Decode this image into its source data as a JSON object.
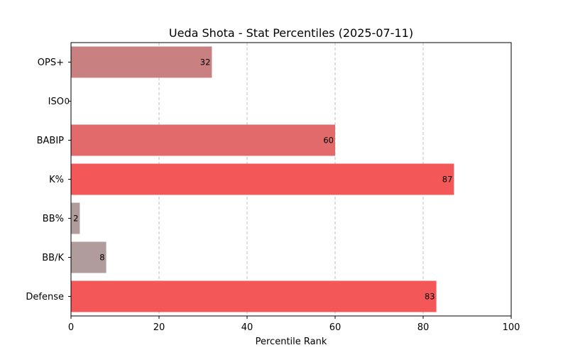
{
  "chart_data": {
    "type": "bar",
    "orientation": "horizontal",
    "title": "Ueda Shota - Stat Percentiles (2025-07-11)",
    "xlabel": "Percentile Rank",
    "ylabel": "",
    "xlim": [
      0,
      100
    ],
    "xticks": [
      0,
      20,
      40,
      60,
      80,
      100
    ],
    "grid": "x-dashed",
    "categories": [
      "OPS+",
      "ISO",
      "BABIP",
      "K%",
      "BB%",
      "BB/K",
      "Defense"
    ],
    "values": [
      32,
      0,
      60,
      87,
      2,
      8,
      83
    ],
    "colors": [
      "#c88080",
      "#b4a4a4",
      "#e26a6a",
      "#f45757",
      "#b09c9c",
      "#b09c9c",
      "#f45757"
    ]
  }
}
